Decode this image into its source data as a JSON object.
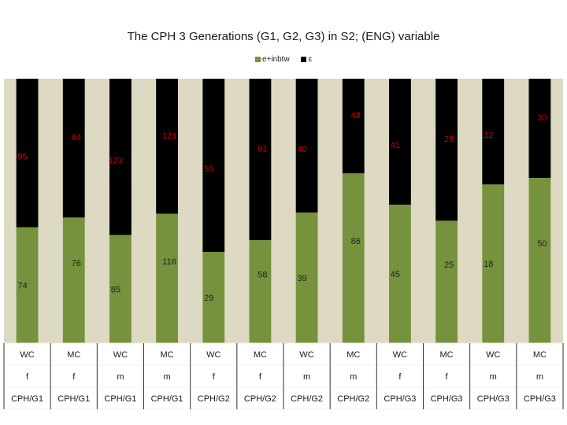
{
  "chart_data": {
    "type": "bar",
    "stacked": "percent",
    "title": "The CPH 3 Generations (G1, G2, G3) in S2; (ENG) variable",
    "legend": {
      "position": "top-center",
      "entries": [
        "e+inbtw",
        "ɛ"
      ]
    },
    "series": [
      {
        "name": "e+inbtw",
        "color": "#76923c",
        "label_color": "#222222",
        "values": [
          74,
          76,
          85,
          116,
          29,
          58,
          39,
          86,
          45,
          25,
          18,
          50
        ]
      },
      {
        "name": "ɛ",
        "color": "#000000",
        "label_color": "#cc0000",
        "values": [
          95,
          84,
          123,
          121,
          55,
          91,
          40,
          48,
          41,
          29,
          12,
          30
        ]
      }
    ],
    "categories": [
      [
        "WC",
        "f",
        "CPH/G1"
      ],
      [
        "MC",
        "f",
        "CPH/G1"
      ],
      [
        "WC",
        "m",
        "CPH/G1"
      ],
      [
        "MC",
        "m",
        "CPH/G1"
      ],
      [
        "WC",
        "f",
        "CPH/G2"
      ],
      [
        "MC",
        "f",
        "CPH/G2"
      ],
      [
        "WC",
        "m",
        "CPH/G2"
      ],
      [
        "MC",
        "m",
        "CPH/G2"
      ],
      [
        "WC",
        "f",
        "CPH/G3"
      ],
      [
        "MC",
        "f",
        "CPH/G3"
      ],
      [
        "WC",
        "m",
        "CPH/G3"
      ],
      [
        "MC",
        "m",
        "CPH/G3"
      ]
    ],
    "ylim": [
      0,
      100
    ],
    "plot_background": "#ddd9c3",
    "xlabel": "",
    "ylabel": ""
  }
}
